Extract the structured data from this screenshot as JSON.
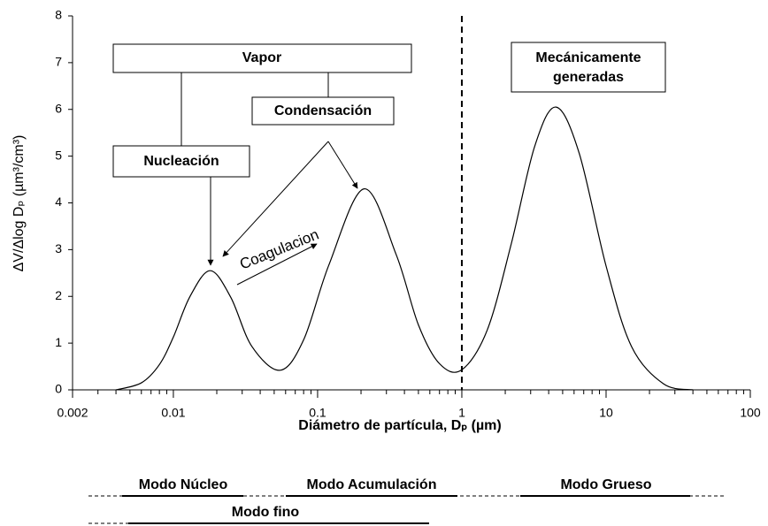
{
  "chart_data": {
    "type": "line",
    "xlabel": "Diámetro de partícula, Dₚ (µm)",
    "ylabel": "ΔV/Δlog Dₚ (µm³/cm³)",
    "x": [
      0.004,
      0.006,
      0.008,
      0.01,
      0.013,
      0.018,
      0.025,
      0.035,
      0.055,
      0.08,
      0.12,
      0.21,
      0.35,
      0.5,
      0.7,
      1,
      1.5,
      2.2,
      3.2,
      4.5,
      6.5,
      10,
      15,
      25,
      40
    ],
    "series": [
      {
        "color": "#000000",
        "values": [
          0,
          0.15,
          0.54,
          1.13,
          1.99,
          2.55,
          1.98,
          0.93,
          0.42,
          1.07,
          2.68,
          4.3,
          2.9,
          1.39,
          0.56,
          0.43,
          1.28,
          3.12,
          5.21,
          6.05,
          5.07,
          2.65,
          0.93,
          0.13,
          0
        ]
      }
    ],
    "xscale": "log",
    "xlim": [
      0.002,
      100
    ],
    "xticks": [
      0.002,
      0.01,
      0.1,
      1,
      10,
      100
    ],
    "xminorticks": [
      0.003,
      0.004,
      0.005,
      0.006,
      0.007,
      0.008,
      0.009,
      0.02,
      0.03,
      0.04,
      0.05,
      0.06,
      0.07,
      0.08,
      0.09,
      0.2,
      0.3,
      0.4,
      0.5,
      0.6,
      0.7,
      0.8,
      0.9,
      2,
      3,
      4,
      5,
      6,
      7,
      8,
      9,
      20,
      30,
      40,
      50,
      60,
      70,
      80,
      90
    ],
    "ylim": [
      0,
      8
    ],
    "yticks": [
      0,
      1,
      2,
      3,
      4,
      5,
      6,
      7,
      8
    ],
    "divider_x": 1,
    "annotations": {
      "vapor": "Vapor",
      "condensacion": "Condensación",
      "nucleacion": "Nucleación",
      "mecanicas": [
        "Mecánicamente",
        "generadas"
      ],
      "coagulacion": "Coagulacion",
      "modo_nucleo": "Modo Núcleo",
      "modo_acumulacion": "Modo Acumulación",
      "modo_grueso": "Modo Grueso",
      "modo_fino": "Modo fino"
    }
  }
}
